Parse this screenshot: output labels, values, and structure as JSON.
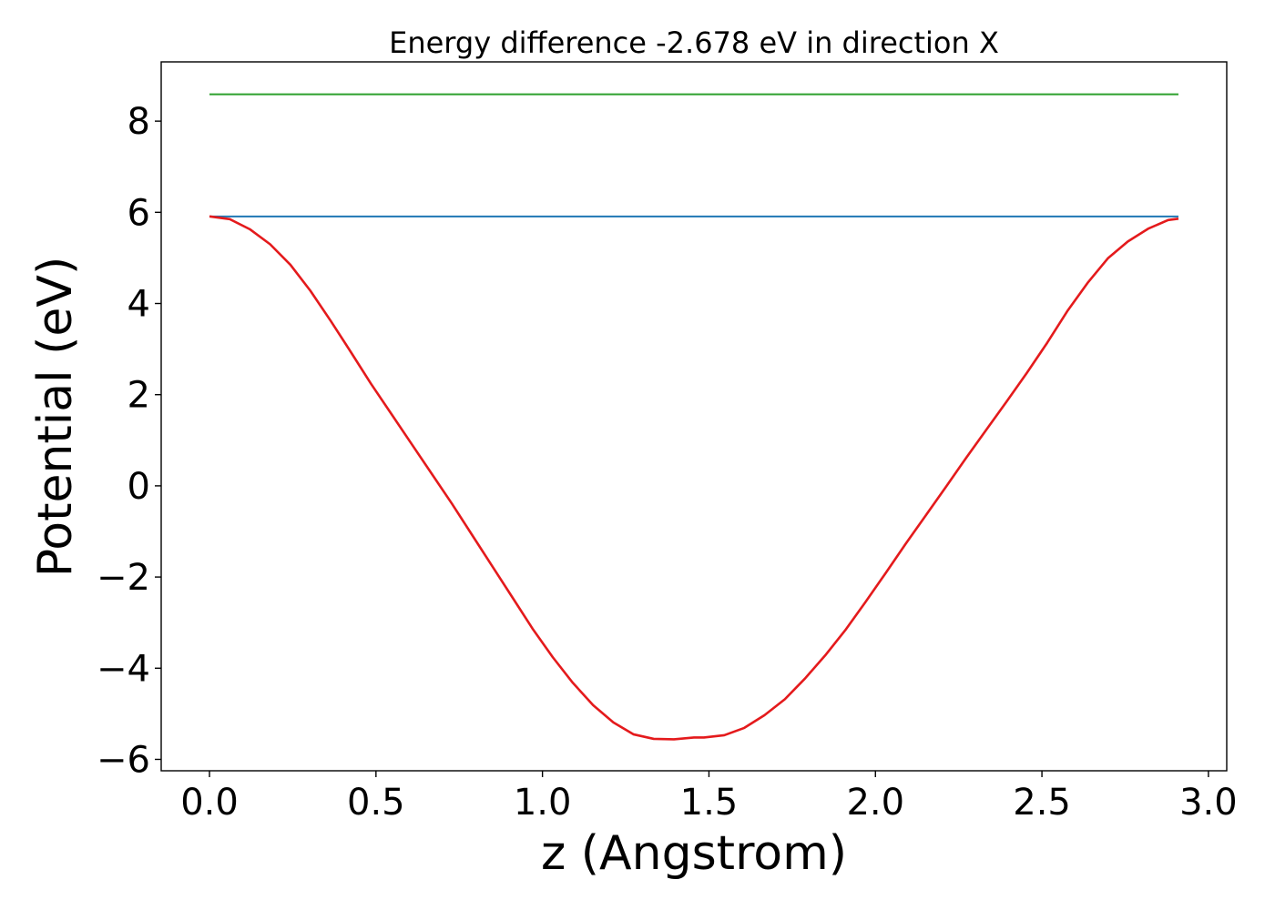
{
  "chart_data": {
    "type": "line",
    "title": "Energy difference -2.678 eV in direction X",
    "xlabel": "z (Angstrom)",
    "ylabel": "Potential (eV)",
    "xlim": [
      -0.145,
      3.055
    ],
    "ylim": [
      -6.25,
      9.3
    ],
    "xticks": [
      {
        "value": 0.0,
        "label": "0.0"
      },
      {
        "value": 0.5,
        "label": "0.5"
      },
      {
        "value": 1.0,
        "label": "1.0"
      },
      {
        "value": 1.5,
        "label": "1.5"
      },
      {
        "value": 2.0,
        "label": "2.0"
      },
      {
        "value": 2.5,
        "label": "2.5"
      },
      {
        "value": 3.0,
        "label": "3.0"
      }
    ],
    "yticks": [
      {
        "value": -6,
        "label": "−6"
      },
      {
        "value": -4,
        "label": "−4"
      },
      {
        "value": -2,
        "label": "−2"
      },
      {
        "value": 0,
        "label": "0"
      },
      {
        "value": 2,
        "label": "2"
      },
      {
        "value": 4,
        "label": "4"
      },
      {
        "value": 6,
        "label": "6"
      },
      {
        "value": 8,
        "label": "8"
      }
    ],
    "grid": false,
    "series": [
      {
        "color": "#2ca02c",
        "x": [
          0.0,
          2.91
        ],
        "y": [
          8.59,
          8.59
        ]
      },
      {
        "color": "#1f77b4",
        "x": [
          0.0,
          2.91
        ],
        "y": [
          5.91,
          5.91
        ]
      },
      {
        "color": "#e41a1c",
        "x": [
          0.0,
          0.061,
          0.121,
          0.182,
          0.243,
          0.303,
          0.364,
          0.425,
          0.485,
          0.546,
          0.606,
          0.667,
          0.728,
          0.788,
          0.849,
          0.91,
          0.97,
          1.031,
          1.091,
          1.152,
          1.213,
          1.273,
          1.334,
          1.395,
          1.455,
          1.485,
          1.546,
          1.606,
          1.667,
          1.728,
          1.788,
          1.849,
          1.909,
          1.97,
          2.031,
          2.091,
          2.152,
          2.213,
          2.273,
          2.334,
          2.394,
          2.455,
          2.516,
          2.576,
          2.637,
          2.698,
          2.758,
          2.819,
          2.879,
          2.91
        ],
        "y": [
          5.91,
          5.85,
          5.63,
          5.3,
          4.85,
          4.28,
          3.62,
          2.93,
          2.24,
          1.58,
          0.93,
          0.27,
          -0.39,
          -1.07,
          -1.76,
          -2.45,
          -3.13,
          -3.76,
          -4.32,
          -4.81,
          -5.19,
          -5.45,
          -5.55,
          -5.56,
          -5.52,
          -5.52,
          -5.47,
          -5.31,
          -5.03,
          -4.68,
          -4.23,
          -3.72,
          -3.17,
          -2.55,
          -1.91,
          -1.27,
          -0.64,
          -0.01,
          0.62,
          1.24,
          1.85,
          2.48,
          3.14,
          3.83,
          4.45,
          4.99,
          5.36,
          5.64,
          5.83,
          5.86
        ]
      }
    ]
  }
}
